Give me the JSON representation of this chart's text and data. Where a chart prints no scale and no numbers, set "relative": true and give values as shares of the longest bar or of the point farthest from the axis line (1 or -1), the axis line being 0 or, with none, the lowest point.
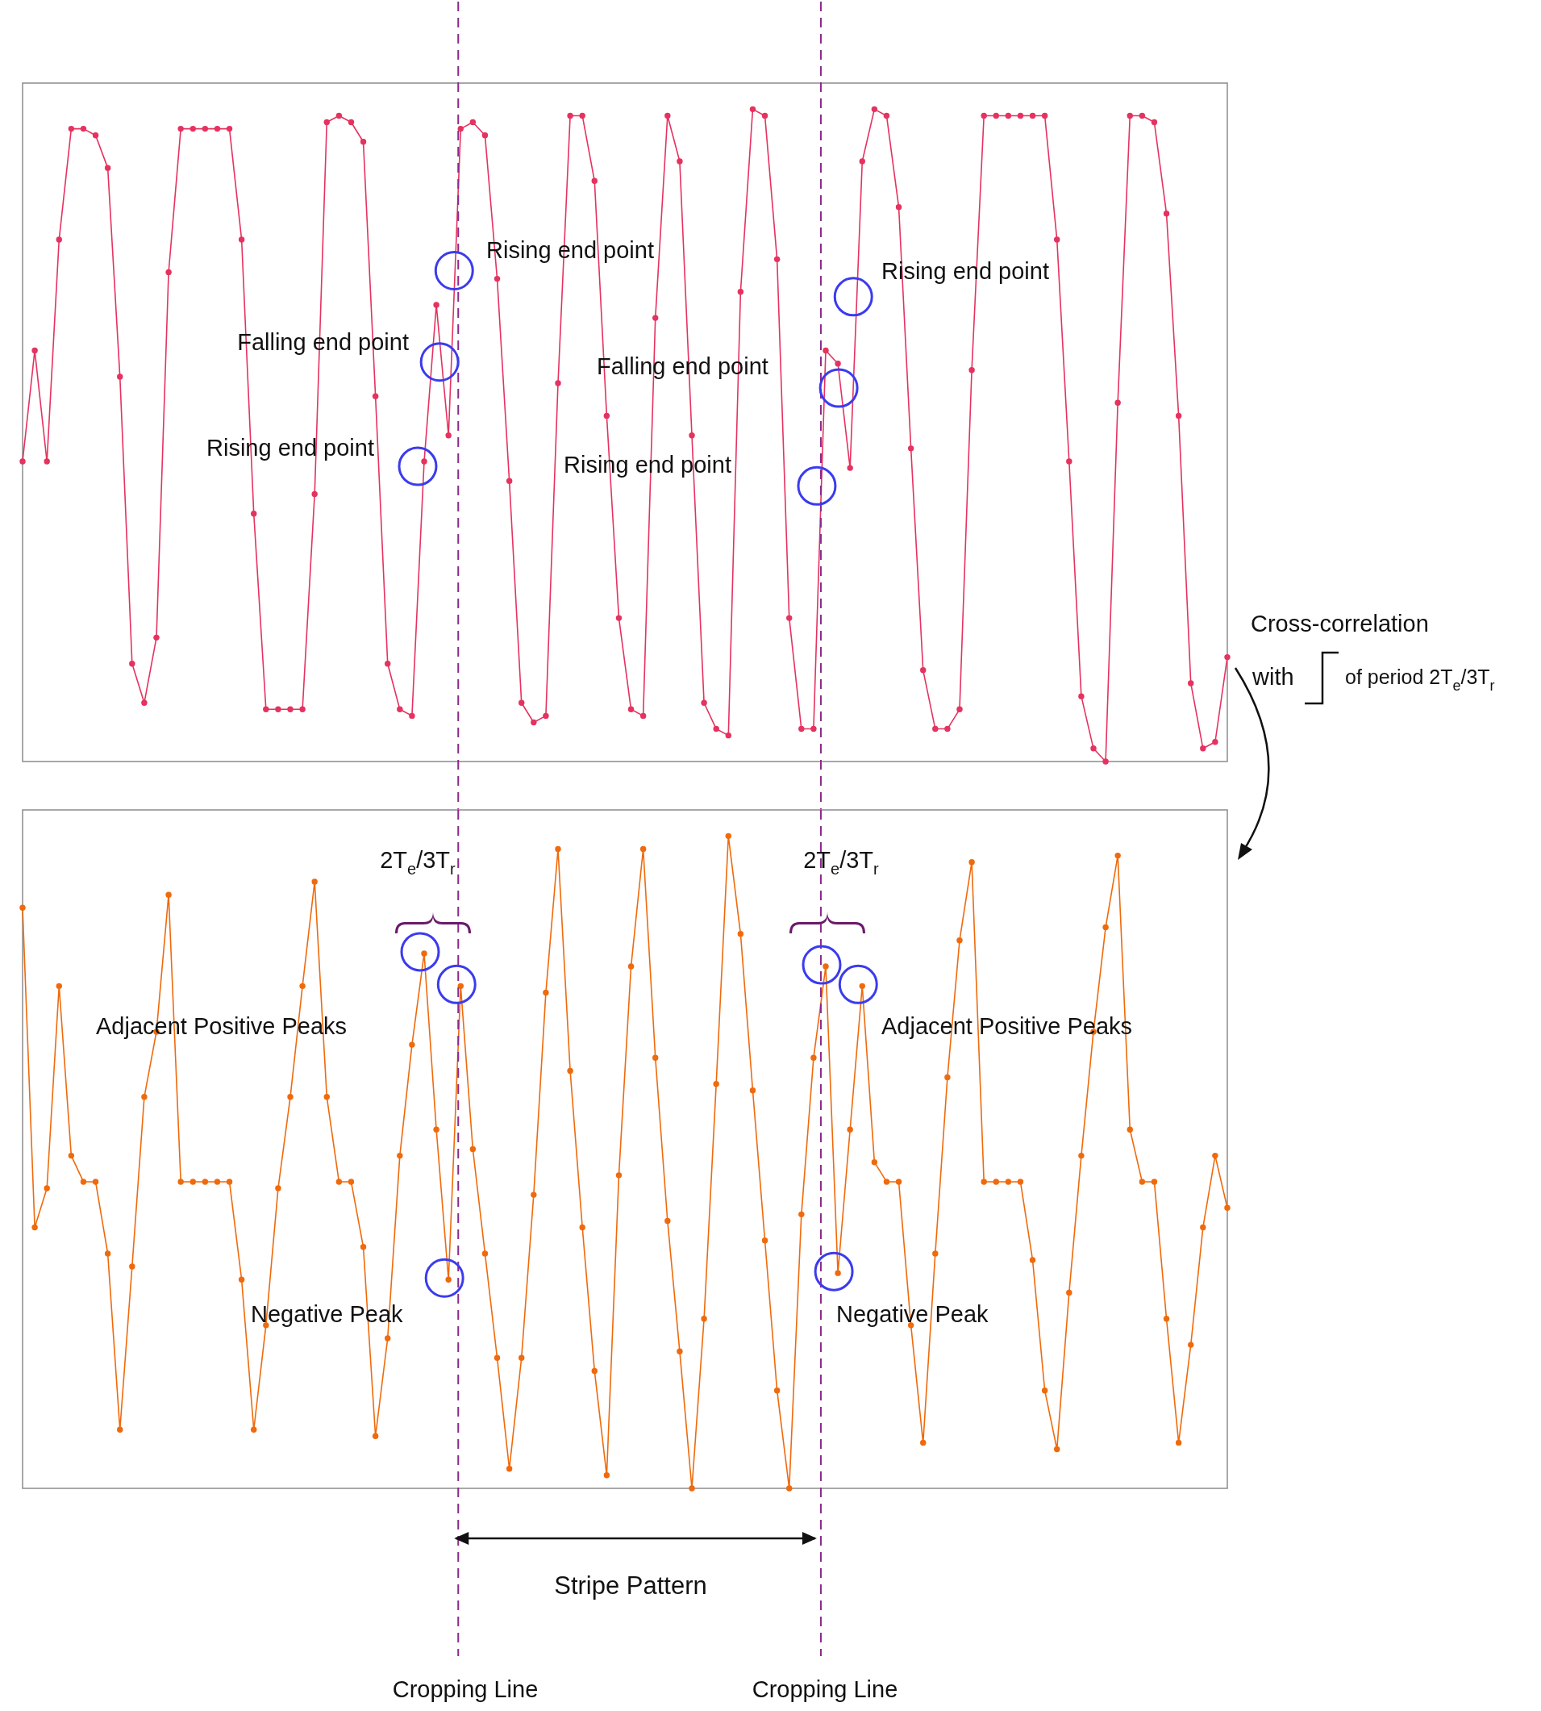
{
  "chart_data": [
    {
      "type": "line",
      "relative": true,
      "tick_labels": false,
      "marker": "circle",
      "line_style": "solid",
      "categories": [
        null,
        null,
        null,
        null,
        null,
        null,
        null,
        null,
        null,
        null,
        null,
        null,
        null,
        null,
        null,
        null,
        null,
        null,
        null,
        null,
        null,
        null,
        null,
        null,
        null,
        null,
        null,
        null,
        null,
        null,
        null,
        null,
        null,
        null,
        null,
        null,
        null,
        null,
        null,
        null,
        null,
        null,
        null,
        null,
        null,
        null,
        null,
        null,
        null,
        null,
        null,
        null,
        null,
        null,
        null,
        null,
        null,
        null,
        null,
        null,
        null,
        null,
        null,
        null,
        null,
        null,
        null,
        null,
        null,
        null,
        null,
        null,
        null,
        null,
        null,
        null,
        null,
        null,
        null,
        null,
        null,
        null,
        null,
        null,
        null,
        null,
        null,
        null,
        null,
        null,
        null,
        null,
        null,
        null,
        null,
        null,
        null,
        null,
        null,
        null
      ],
      "series": [
        {
          "color": "#e5325f",
          "values": [
            0.46,
            0.63,
            0.46,
            0.8,
            0.97,
            0.97,
            0.96,
            0.91,
            0.59,
            0.15,
            0.09,
            0.19,
            0.75,
            0.97,
            0.97,
            0.97,
            0.97,
            0.97,
            0.8,
            0.38,
            0.08,
            0.08,
            0.08,
            0.08,
            0.41,
            0.98,
            0.99,
            0.98,
            0.95,
            0.56,
            0.15,
            0.08,
            0.07,
            0.46,
            0.7,
            0.5,
            0.97,
            0.98,
            0.96,
            0.74,
            0.43,
            0.09,
            0.06,
            0.07,
            0.58,
            0.99,
            0.99,
            0.89,
            0.53,
            0.22,
            0.08,
            0.07,
            0.68,
            0.99,
            0.92,
            0.5,
            0.09,
            0.05,
            0.04,
            0.72,
            1.0,
            0.99,
            0.77,
            0.22,
            0.05,
            0.05,
            0.63,
            0.61,
            0.45,
            0.92,
            1.0,
            0.99,
            0.85,
            0.48,
            0.14,
            0.05,
            0.05,
            0.08,
            0.6,
            0.99,
            0.99,
            0.99,
            0.99,
            0.99,
            0.99,
            0.8,
            0.46,
            0.1,
            0.02,
            0.0,
            0.55,
            0.99,
            0.99,
            0.98,
            0.84,
            0.53,
            0.12,
            0.02,
            0.03,
            0.16
          ]
        }
      ],
      "annotations": [
        "Rising end point",
        "Falling end point",
        "Rising end point",
        "Rising end point",
        "Falling end point",
        "Rising end point",
        "Cross-correlation",
        "with",
        "of period 2T$_{e}$/3T$_{r}$"
      ]
    },
    {
      "type": "line",
      "relative": true,
      "tick_labels": false,
      "marker": "circle",
      "line_style": "solid",
      "categories": [
        null,
        null,
        null,
        null,
        null,
        null,
        null,
        null,
        null,
        null,
        null,
        null,
        null,
        null,
        null,
        null,
        null,
        null,
        null,
        null,
        null,
        null,
        null,
        null,
        null,
        null,
        null,
        null,
        null,
        null,
        null,
        null,
        null,
        null,
        null,
        null,
        null,
        null,
        null,
        null,
        null,
        null,
        null,
        null,
        null,
        null,
        null,
        null,
        null,
        null,
        null,
        null,
        null,
        null,
        null,
        null,
        null,
        null,
        null,
        null,
        null,
        null,
        null,
        null,
        null,
        null,
        null,
        null,
        null,
        null,
        null,
        null,
        null,
        null,
        null,
        null,
        null,
        null,
        null,
        null,
        null,
        null,
        null,
        null,
        null,
        null,
        null,
        null,
        null,
        null,
        null,
        null,
        null,
        null,
        null,
        null,
        null,
        null,
        null,
        null
      ],
      "series": [
        {
          "color": "#ef6a0c",
          "values": [
            0.89,
            0.4,
            0.46,
            0.77,
            0.51,
            0.47,
            0.47,
            0.36,
            0.09,
            0.34,
            0.6,
            0.7,
            0.91,
            0.47,
            0.47,
            0.47,
            0.47,
            0.47,
            0.32,
            0.09,
            0.25,
            0.46,
            0.6,
            0.77,
            0.93,
            0.6,
            0.47,
            0.47,
            0.37,
            0.08,
            0.23,
            0.51,
            0.68,
            0.82,
            0.55,
            0.32,
            0.77,
            0.52,
            0.36,
            0.2,
            0.03,
            0.2,
            0.45,
            0.76,
            0.98,
            0.64,
            0.4,
            0.18,
            0.02,
            0.48,
            0.8,
            0.98,
            0.66,
            0.41,
            0.21,
            0.0,
            0.26,
            0.62,
            1.0,
            0.85,
            0.61,
            0.38,
            0.15,
            0.0,
            0.42,
            0.66,
            0.8,
            0.33,
            0.55,
            0.77,
            0.5,
            0.47,
            0.47,
            0.25,
            0.07,
            0.36,
            0.63,
            0.84,
            0.96,
            0.47,
            0.47,
            0.47,
            0.47,
            0.35,
            0.15,
            0.06,
            0.3,
            0.51,
            0.7,
            0.86,
            0.97,
            0.55,
            0.47,
            0.47,
            0.26,
            0.07,
            0.22,
            0.4,
            0.51,
            0.43
          ]
        }
      ],
      "annotations": [
        "2T$_{e}$/3T$_{r}$",
        "2T$_{e}$/3T$_{r}$",
        "Adjacent Positive Peaks",
        "Adjacent Positive Peaks",
        "Negative Peak",
        "Negative Peak",
        "Stripe Pattern",
        "Cropping Line",
        "Cropping Line"
      ]
    }
  ]
}
